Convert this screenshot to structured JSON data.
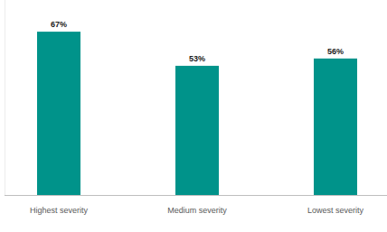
{
  "chart_data": {
    "type": "bar",
    "categories": [
      "Highest severity",
      "Medium severity",
      "Lowest severity"
    ],
    "values": [
      67,
      53,
      56
    ],
    "value_labels": [
      "67%",
      "53%",
      "56%"
    ],
    "color": "#00938a",
    "ylim": [
      0,
      80
    ],
    "data_labels": true,
    "tick_labels": "x",
    "grid": false
  }
}
